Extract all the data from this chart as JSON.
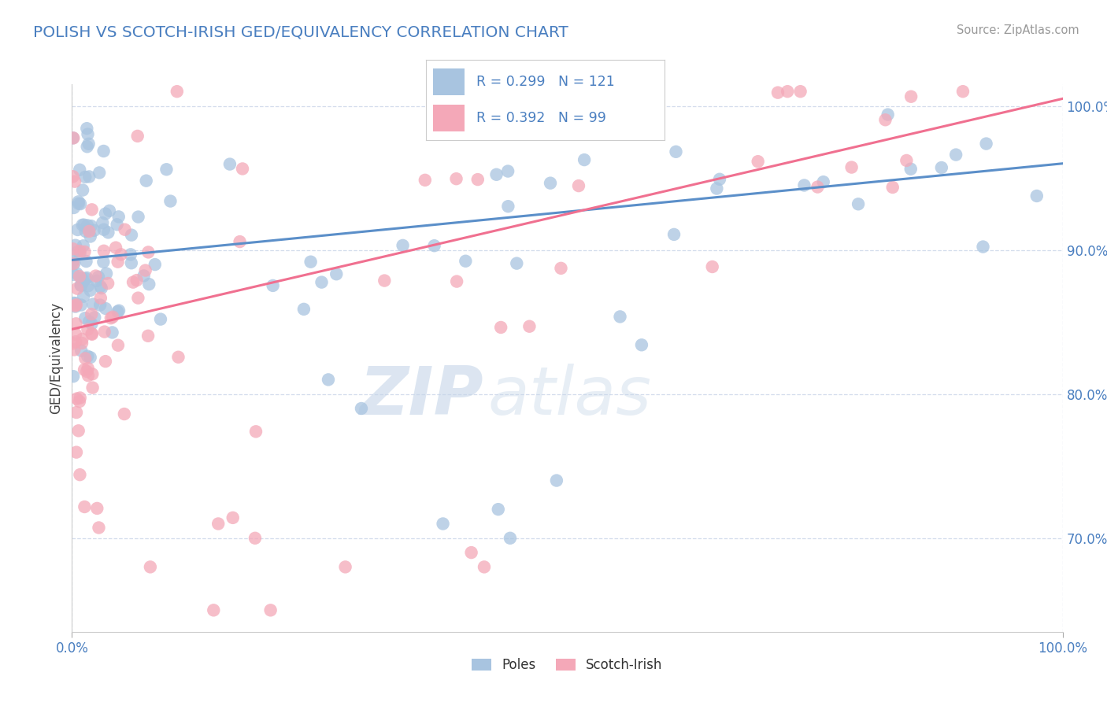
{
  "title": "POLISH VS SCOTCH-IRISH GED/EQUIVALENCY CORRELATION CHART",
  "source": "Source: ZipAtlas.com",
  "ylabel": "GED/Equivalency",
  "x_min": 0.0,
  "x_max": 1.0,
  "y_min": 0.635,
  "y_max": 1.015,
  "y_ticks": [
    0.7,
    0.8,
    0.9,
    1.0
  ],
  "y_tick_labels": [
    "70.0%",
    "80.0%",
    "90.0%",
    "100.0%"
  ],
  "x_tick_labels": [
    "0.0%",
    "100.0%"
  ],
  "poles_color": "#a8c4e0",
  "scotch_color": "#f4a8b8",
  "poles_line_color": "#5b8fc9",
  "scotch_line_color": "#f07090",
  "R_poles": 0.299,
  "N_poles": 121,
  "R_scotch": 0.392,
  "N_scotch": 99,
  "background_color": "#ffffff",
  "watermark_zip": "ZIP",
  "watermark_atlas": "atlas",
  "legend_label_poles": "Poles",
  "legend_label_scotch": "Scotch-Irish",
  "poles_trendline_x0": 0.0,
  "poles_trendline_x1": 1.0,
  "poles_trendline_y0": 0.893,
  "poles_trendline_y1": 0.96,
  "scotch_trendline_x0": 0.0,
  "scotch_trendline_x1": 1.0,
  "scotch_trendline_y0": 0.845,
  "scotch_trendline_y1": 1.005
}
